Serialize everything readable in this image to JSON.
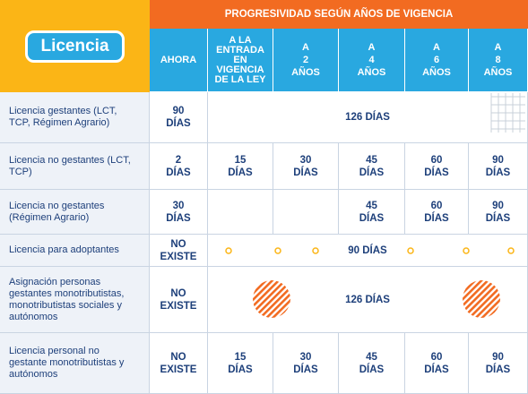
{
  "header": {
    "title": "PROGRESIVIDAD SEGÚN AÑOS DE VIGENCIA",
    "badge": "Licencia",
    "columns": [
      "AHORA",
      "A LA ENTRADA EN VIGENCIA DE LA LEY",
      "A 2 AÑOS",
      "A 4 AÑOS",
      "A 6 AÑOS",
      "A 8 AÑOS"
    ]
  },
  "rows": [
    {
      "label": "Licencia gestantes (LCT, TCP, Régimen Agrario)",
      "now": "90 DÍAS",
      "span": "126 DÍAS"
    },
    {
      "label": "Licencia no gestantes (LCT, TCP)",
      "now": "2 DÍAS",
      "cells": [
        "15 DÍAS",
        "30 DÍAS",
        "45 DÍAS",
        "60 DÍAS",
        "90 DÍAS"
      ]
    },
    {
      "label": "Licencia no gestantes (Régimen Agrario)",
      "now": "30 DÍAS",
      "cells": [
        "45 DÍAS",
        "60 DÍAS",
        "90 DÍAS"
      ]
    },
    {
      "label": "Licencia para adoptantes",
      "now": "NO EXISTE",
      "span": "90 DÍAS"
    },
    {
      "label": "Asignación personas gestantes monotributistas, monotributistas sociales y autónomos",
      "now": "NO EXISTE",
      "span": "126 DÍAS"
    },
    {
      "label": "Licencia personal no gestante monotributistas y autónomos",
      "now": "NO EXISTE",
      "cells": [
        "15 DÍAS",
        "30 DÍAS",
        "45 DÍAS",
        "60 DÍAS",
        "90 DÍAS"
      ]
    }
  ]
}
